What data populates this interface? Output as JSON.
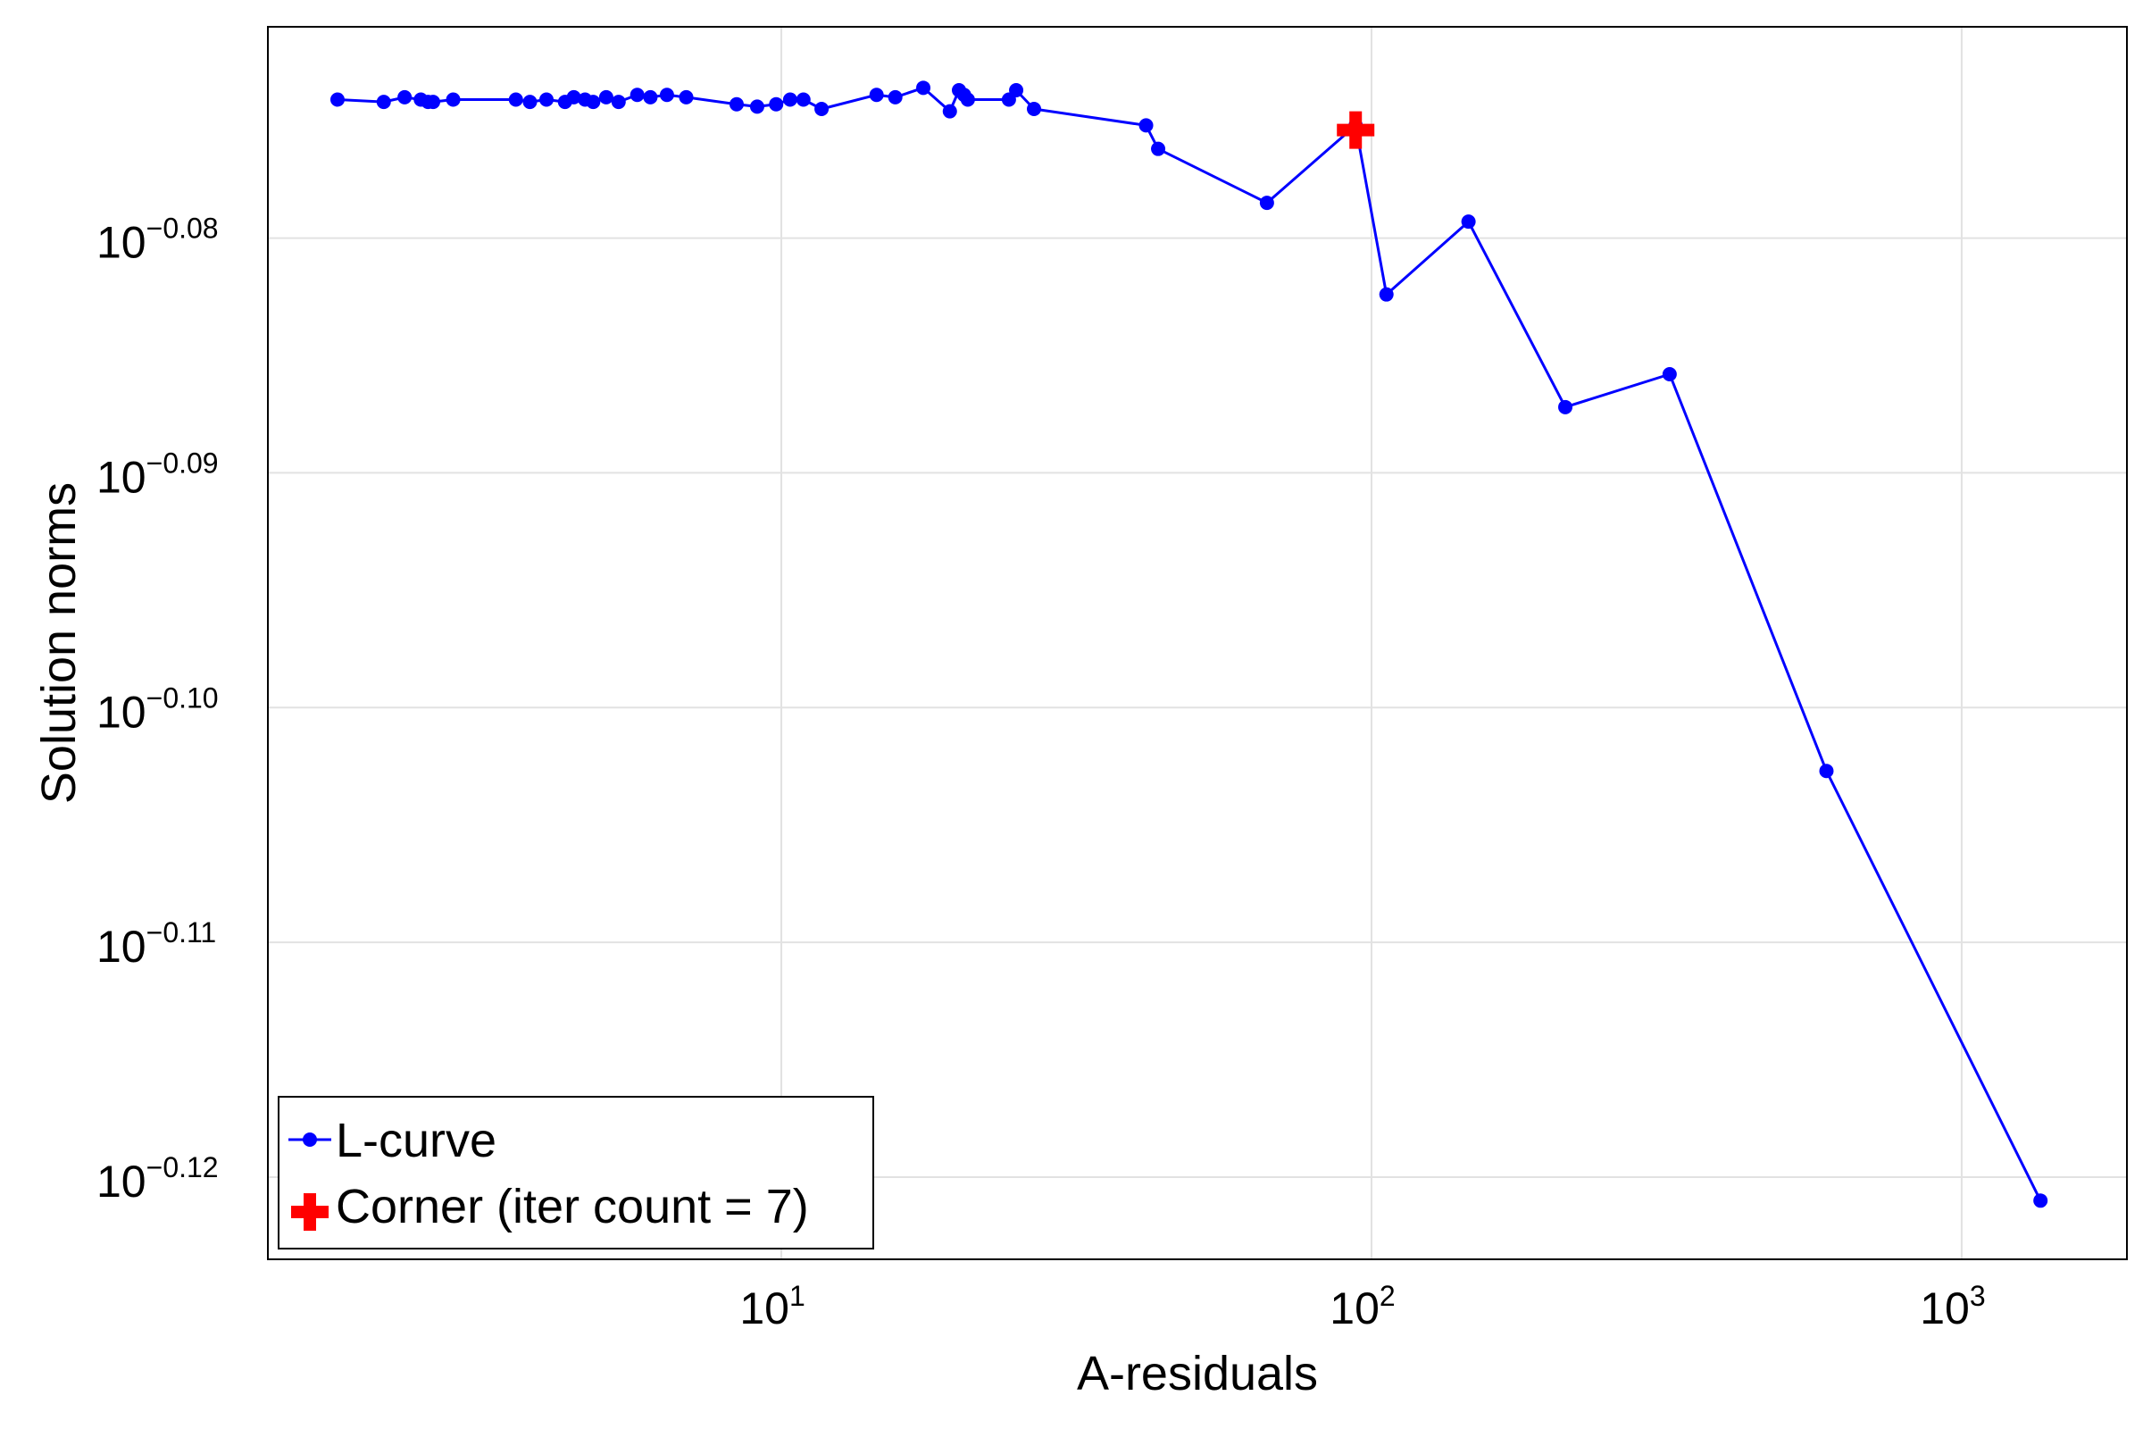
{
  "chart_data": {
    "type": "line",
    "xlabel": "A-residuals",
    "ylabel": "Solution norms",
    "xscale": "log10",
    "yscale": "log10",
    "xlim_log10": [
      0.13,
      3.28
    ],
    "ylim_log10": [
      -0.1235,
      -0.071
    ],
    "x_ticks": [
      {
        "base": "10",
        "exp": "1",
        "value": 10
      },
      {
        "base": "10",
        "exp": "2",
        "value": 100
      },
      {
        "base": "10",
        "exp": "3",
        "value": 1000
      }
    ],
    "y_ticks": [
      {
        "base": "10",
        "exp": "−0.08",
        "value": -0.08
      },
      {
        "base": "10",
        "exp": "−0.09",
        "value": -0.09
      },
      {
        "base": "10",
        "exp": "−0.10",
        "value": -0.1
      },
      {
        "base": "10",
        "exp": "−0.11",
        "value": -0.11
      },
      {
        "base": "10",
        "exp": "−0.12",
        "value": -0.12
      }
    ],
    "grid": true,
    "legend_position": "bottom-left",
    "colors": {
      "l_curve": "#0000ff",
      "corner": "#ff0000"
    },
    "series": [
      {
        "name": "L-curve",
        "marker": "circle",
        "points": [
          [
            1360,
            -0.121
          ],
          [
            590,
            -0.1027
          ],
          [
            320,
            -0.0858
          ],
          [
            213,
            -0.0872
          ],
          [
            146,
            -0.0793
          ],
          [
            106,
            -0.0824
          ],
          [
            94,
            -0.0752
          ],
          [
            66.5,
            -0.0785
          ],
          [
            43.5,
            -0.0762
          ],
          [
            41.5,
            -0.0752
          ],
          [
            26.8,
            -0.0745
          ],
          [
            25,
            -0.0737
          ],
          [
            24.3,
            -0.0741
          ],
          [
            20.7,
            -0.0741
          ],
          [
            20.4,
            -0.0739
          ],
          [
            20,
            -0.0737
          ],
          [
            19.3,
            -0.0746
          ],
          [
            17.4,
            -0.0736
          ],
          [
            15.6,
            -0.074
          ],
          [
            14.5,
            -0.0739
          ],
          [
            11.7,
            -0.0745
          ],
          [
            10.9,
            -0.0741
          ],
          [
            10.35,
            -0.0741
          ],
          [
            9.8,
            -0.0743
          ],
          [
            9.1,
            -0.0744
          ],
          [
            8.4,
            -0.0743
          ],
          [
            6.9,
            -0.074
          ],
          [
            6.4,
            -0.0739
          ],
          [
            6.0,
            -0.074
          ],
          [
            5.7,
            -0.0739
          ],
          [
            5.3,
            -0.0742
          ],
          [
            5.05,
            -0.074
          ],
          [
            4.8,
            -0.0742
          ],
          [
            4.65,
            -0.0741
          ],
          [
            4.45,
            -0.074
          ],
          [
            4.3,
            -0.0742
          ],
          [
            4.0,
            -0.0741
          ],
          [
            3.75,
            -0.0742
          ],
          [
            3.55,
            -0.0741
          ],
          [
            2.78,
            -0.0741
          ],
          [
            2.57,
            -0.0742
          ],
          [
            2.52,
            -0.0742
          ],
          [
            2.45,
            -0.0741
          ],
          [
            2.3,
            -0.074
          ],
          [
            2.12,
            -0.0742
          ],
          [
            1.77,
            -0.0741
          ]
        ]
      },
      {
        "name": "Corner (iter count = 7)",
        "marker": "cross",
        "points": [
          [
            94,
            -0.0754
          ]
        ]
      }
    ]
  }
}
